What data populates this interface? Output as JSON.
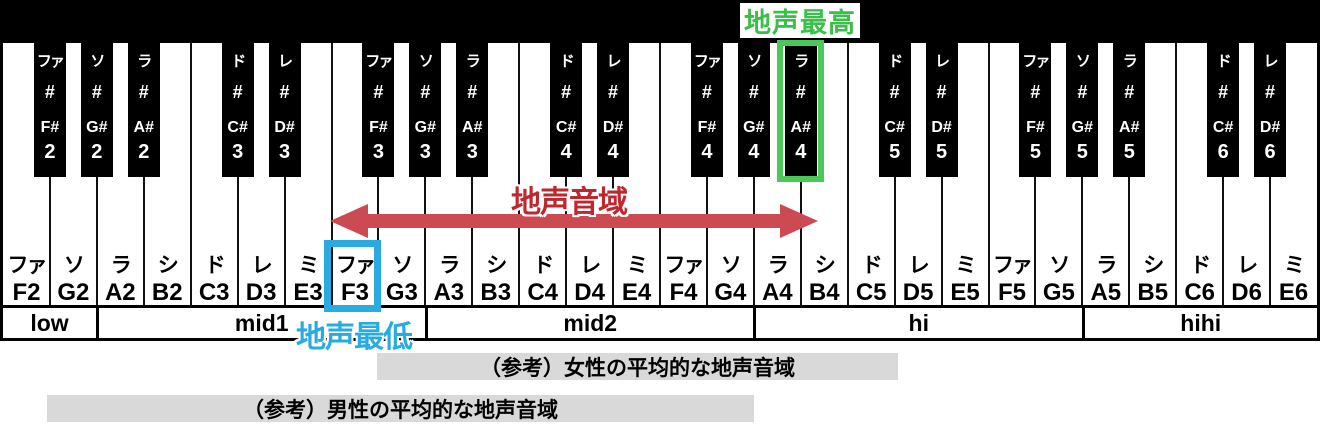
{
  "colors": {
    "blue": "#29abe2",
    "green_box": "#4cc85a",
    "green_text": "#3abf4a",
    "red_arrow": "#cc4a52",
    "red_text": "#bf272e",
    "bar_bg": "#d9d9d9"
  },
  "annotations": {
    "highest_label": "地声最高",
    "lowest_label": "地声最低",
    "range_label": "地声音域",
    "female_ref": "（参考）女性の平均的な地声音域",
    "male_ref": "（参考）男性の平均的な地声音域",
    "highest_key": "A#4",
    "lowest_key": "F3"
  },
  "octave_sections": [
    {
      "label": "low",
      "keys": 2
    },
    {
      "label": "mid1",
      "keys": 7
    },
    {
      "label": "mid2",
      "keys": 7
    },
    {
      "label": "hi",
      "keys": 7
    },
    {
      "label": "hihi",
      "keys": 5
    }
  ],
  "white_keys": [
    {
      "kana": "ファ",
      "name": "F2"
    },
    {
      "kana": "ソ",
      "name": "G2"
    },
    {
      "kana": "ラ",
      "name": "A2"
    },
    {
      "kana": "シ",
      "name": "B2"
    },
    {
      "kana": "ド",
      "name": "C3"
    },
    {
      "kana": "レ",
      "name": "D3"
    },
    {
      "kana": "ミ",
      "name": "E3"
    },
    {
      "kana": "ファ",
      "name": "F3"
    },
    {
      "kana": "ソ",
      "name": "G3"
    },
    {
      "kana": "ラ",
      "name": "A3"
    },
    {
      "kana": "シ",
      "name": "B3"
    },
    {
      "kana": "ド",
      "name": "C4"
    },
    {
      "kana": "レ",
      "name": "D4"
    },
    {
      "kana": "ミ",
      "name": "E4"
    },
    {
      "kana": "ファ",
      "name": "F4"
    },
    {
      "kana": "ソ",
      "name": "G4"
    },
    {
      "kana": "ラ",
      "name": "A4"
    },
    {
      "kana": "シ",
      "name": "B4"
    },
    {
      "kana": "ド",
      "name": "C5"
    },
    {
      "kana": "レ",
      "name": "D5"
    },
    {
      "kana": "ミ",
      "name": "E5"
    },
    {
      "kana": "ファ",
      "name": "F5"
    },
    {
      "kana": "ソ",
      "name": "G5"
    },
    {
      "kana": "ラ",
      "name": "A5"
    },
    {
      "kana": "シ",
      "name": "B5"
    },
    {
      "kana": "ド",
      "name": "C6"
    },
    {
      "kana": "レ",
      "name": "D6"
    },
    {
      "kana": "ミ",
      "name": "E6"
    }
  ],
  "black_keys": [
    {
      "kana": "ファ",
      "sharp": "#",
      "name": "F#",
      "octave": "2",
      "boundary": 0
    },
    {
      "kana": "ソ",
      "sharp": "#",
      "name": "G#",
      "octave": "2",
      "boundary": 1
    },
    {
      "kana": "ラ",
      "sharp": "#",
      "name": "A#",
      "octave": "2",
      "boundary": 2
    },
    {
      "kana": "ド",
      "sharp": "#",
      "name": "C#",
      "octave": "3",
      "boundary": 4
    },
    {
      "kana": "レ",
      "sharp": "#",
      "name": "D#",
      "octave": "3",
      "boundary": 5
    },
    {
      "kana": "ファ",
      "sharp": "#",
      "name": "F#",
      "octave": "3",
      "boundary": 7
    },
    {
      "kana": "ソ",
      "sharp": "#",
      "name": "G#",
      "octave": "3",
      "boundary": 8
    },
    {
      "kana": "ラ",
      "sharp": "#",
      "name": "A#",
      "octave": "3",
      "boundary": 9
    },
    {
      "kana": "ド",
      "sharp": "#",
      "name": "C#",
      "octave": "4",
      "boundary": 11
    },
    {
      "kana": "レ",
      "sharp": "#",
      "name": "D#",
      "octave": "4",
      "boundary": 12
    },
    {
      "kana": "ファ",
      "sharp": "#",
      "name": "F#",
      "octave": "4",
      "boundary": 14
    },
    {
      "kana": "ソ",
      "sharp": "#",
      "name": "G#",
      "octave": "4",
      "boundary": 15
    },
    {
      "kana": "ラ",
      "sharp": "#",
      "name": "A#",
      "octave": "4",
      "boundary": 16
    },
    {
      "kana": "ド",
      "sharp": "#",
      "name": "C#",
      "octave": "5",
      "boundary": 18
    },
    {
      "kana": "レ",
      "sharp": "#",
      "name": "D#",
      "octave": "5",
      "boundary": 19
    },
    {
      "kana": "ファ",
      "sharp": "#",
      "name": "F#",
      "octave": "5",
      "boundary": 21
    },
    {
      "kana": "ソ",
      "sharp": "#",
      "name": "G#",
      "octave": "5",
      "boundary": 22
    },
    {
      "kana": "ラ",
      "sharp": "#",
      "name": "A#",
      "octave": "5",
      "boundary": 23
    },
    {
      "kana": "ド",
      "sharp": "#",
      "name": "C#",
      "octave": "6",
      "boundary": 25
    },
    {
      "kana": "レ",
      "sharp": "#",
      "name": "D#",
      "octave": "6",
      "boundary": 26
    }
  ]
}
